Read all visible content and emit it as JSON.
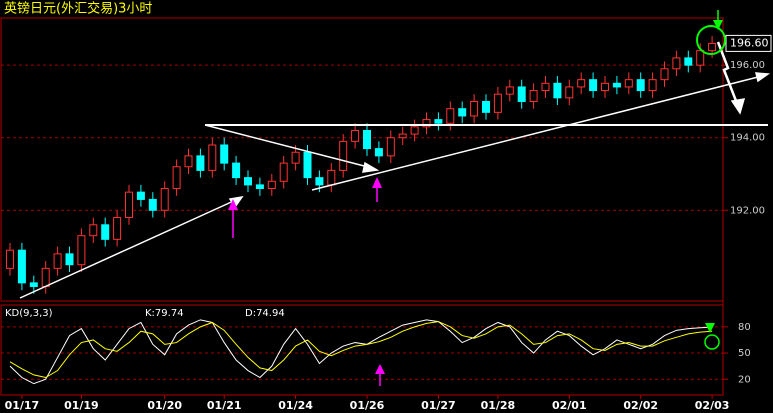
{
  "chart_data": [
    {
      "type": "candlestick",
      "title": "英镑日元(外汇交易)3小时",
      "categories": [
        null,
        "01/17",
        null,
        null,
        null,
        null,
        "01/19",
        null,
        null,
        null,
        null,
        null,
        null,
        "01/20",
        null,
        null,
        null,
        null,
        "01/21",
        null,
        null,
        null,
        null,
        null,
        "01/24",
        null,
        null,
        null,
        null,
        null,
        "01/26",
        null,
        null,
        null,
        null,
        null,
        "01/27",
        null,
        null,
        null,
        null,
        "01/28",
        null,
        null,
        null,
        null,
        null,
        "02/01",
        null,
        null,
        null,
        null,
        null,
        "02/02",
        null,
        null,
        null,
        null,
        null,
        "02/03"
      ],
      "open": [
        190.4,
        190.9,
        190.0,
        189.9,
        190.4,
        190.8,
        190.5,
        191.3,
        191.6,
        191.2,
        191.8,
        192.5,
        192.3,
        192.0,
        192.6,
        193.2,
        193.5,
        193.1,
        193.8,
        193.3,
        192.9,
        192.7,
        192.6,
        192.8,
        193.3,
        193.6,
        192.9,
        192.7,
        193.1,
        193.9,
        194.2,
        193.7,
        193.5,
        194.0,
        194.1,
        194.3,
        194.5,
        194.4,
        194.8,
        194.6,
        195.0,
        194.7,
        195.2,
        195.4,
        195.0,
        195.3,
        195.5,
        195.1,
        195.4,
        195.6,
        195.3,
        195.5,
        195.4,
        195.6,
        195.3,
        195.6,
        195.9,
        196.2,
        196.0,
        196.4
      ],
      "high": [
        191.1,
        191.1,
        190.2,
        190.6,
        191.0,
        191.0,
        191.5,
        191.8,
        191.8,
        192.0,
        192.7,
        192.7,
        192.5,
        192.8,
        193.4,
        193.7,
        193.7,
        194.0,
        194.0,
        193.5,
        193.1,
        192.9,
        193.0,
        193.5,
        193.8,
        193.8,
        193.1,
        193.3,
        194.1,
        194.4,
        194.4,
        193.9,
        194.2,
        194.3,
        194.5,
        194.7,
        194.7,
        195.0,
        195.0,
        195.2,
        195.2,
        195.4,
        195.6,
        195.6,
        195.5,
        195.7,
        195.7,
        195.6,
        195.8,
        195.8,
        195.7,
        195.7,
        195.8,
        195.8,
        195.8,
        196.1,
        196.4,
        196.4,
        196.6,
        196.8
      ],
      "low": [
        190.2,
        189.8,
        189.7,
        189.7,
        190.2,
        190.3,
        190.3,
        191.1,
        191.0,
        191.0,
        191.6,
        192.1,
        191.8,
        191.8,
        192.4,
        193.0,
        192.9,
        192.9,
        193.1,
        192.7,
        192.5,
        192.4,
        192.4,
        192.6,
        193.1,
        192.7,
        192.5,
        192.5,
        192.9,
        193.7,
        193.5,
        193.3,
        193.3,
        193.8,
        193.9,
        194.1,
        194.2,
        194.2,
        194.4,
        194.4,
        194.5,
        194.5,
        195.0,
        194.8,
        194.8,
        195.1,
        194.9,
        194.9,
        195.2,
        195.1,
        195.1,
        195.2,
        195.2,
        195.1,
        195.1,
        195.4,
        195.7,
        195.8,
        195.8,
        196.2
      ],
      "close": [
        190.9,
        190.0,
        189.9,
        190.4,
        190.8,
        190.5,
        191.3,
        191.6,
        191.2,
        191.8,
        192.5,
        192.3,
        192.0,
        192.6,
        193.2,
        193.5,
        193.1,
        193.8,
        193.3,
        192.9,
        192.7,
        192.6,
        192.8,
        193.3,
        193.6,
        192.9,
        192.7,
        193.1,
        193.9,
        194.2,
        193.7,
        193.5,
        194.0,
        194.1,
        194.3,
        194.5,
        194.4,
        194.8,
        194.6,
        195.0,
        194.7,
        195.2,
        195.4,
        195.0,
        195.3,
        195.5,
        195.1,
        195.4,
        195.6,
        195.3,
        195.5,
        195.4,
        195.6,
        195.3,
        195.6,
        195.9,
        196.2,
        196.0,
        196.4,
        196.6
      ],
      "up_color": "#ff3232",
      "down_color": "#00ffff",
      "last_price": {
        "value": 196.6,
        "label": "196.60"
      },
      "ylim": [
        189.5,
        197.3
      ],
      "yticks": [
        {
          "value": 192,
          "label": "192.00"
        },
        {
          "value": 194,
          "label": "194.00"
        },
        {
          "value": 196,
          "label": "196.00"
        }
      ],
      "grid": true
    },
    {
      "type": "line",
      "title": "KD(9,3,3)",
      "k_label": "K:79.74",
      "d_label": "D:74.94",
      "series": [
        {
          "color": "#ffffff",
          "values": [
            35,
            22,
            15,
            20,
            45,
            70,
            78,
            55,
            42,
            60,
            78,
            85,
            60,
            48,
            72,
            82,
            88,
            85,
            62,
            42,
            30,
            22,
            35,
            60,
            78,
            60,
            38,
            50,
            58,
            62,
            60,
            68,
            75,
            82,
            85,
            88,
            86,
            75,
            62,
            68,
            78,
            85,
            80,
            62,
            50,
            65,
            75,
            70,
            58,
            48,
            55,
            65,
            60,
            55,
            60,
            70,
            76,
            78,
            79,
            79.74
          ]
        },
        {
          "color": "#ffff00",
          "values": [
            40,
            32,
            25,
            22,
            30,
            48,
            62,
            65,
            55,
            52,
            62,
            75,
            72,
            60,
            62,
            72,
            80,
            85,
            76,
            60,
            45,
            33,
            30,
            42,
            58,
            65,
            52,
            47,
            53,
            58,
            60,
            63,
            68,
            75,
            80,
            84,
            86,
            80,
            70,
            67,
            72,
            80,
            82,
            72,
            60,
            62,
            70,
            72,
            65,
            55,
            53,
            60,
            62,
            58,
            58,
            64,
            68,
            72,
            74,
            74.94
          ]
        }
      ],
      "ylim": [
        2,
        105
      ],
      "yticks": [
        20,
        50,
        80
      ],
      "grid": true
    }
  ]
}
